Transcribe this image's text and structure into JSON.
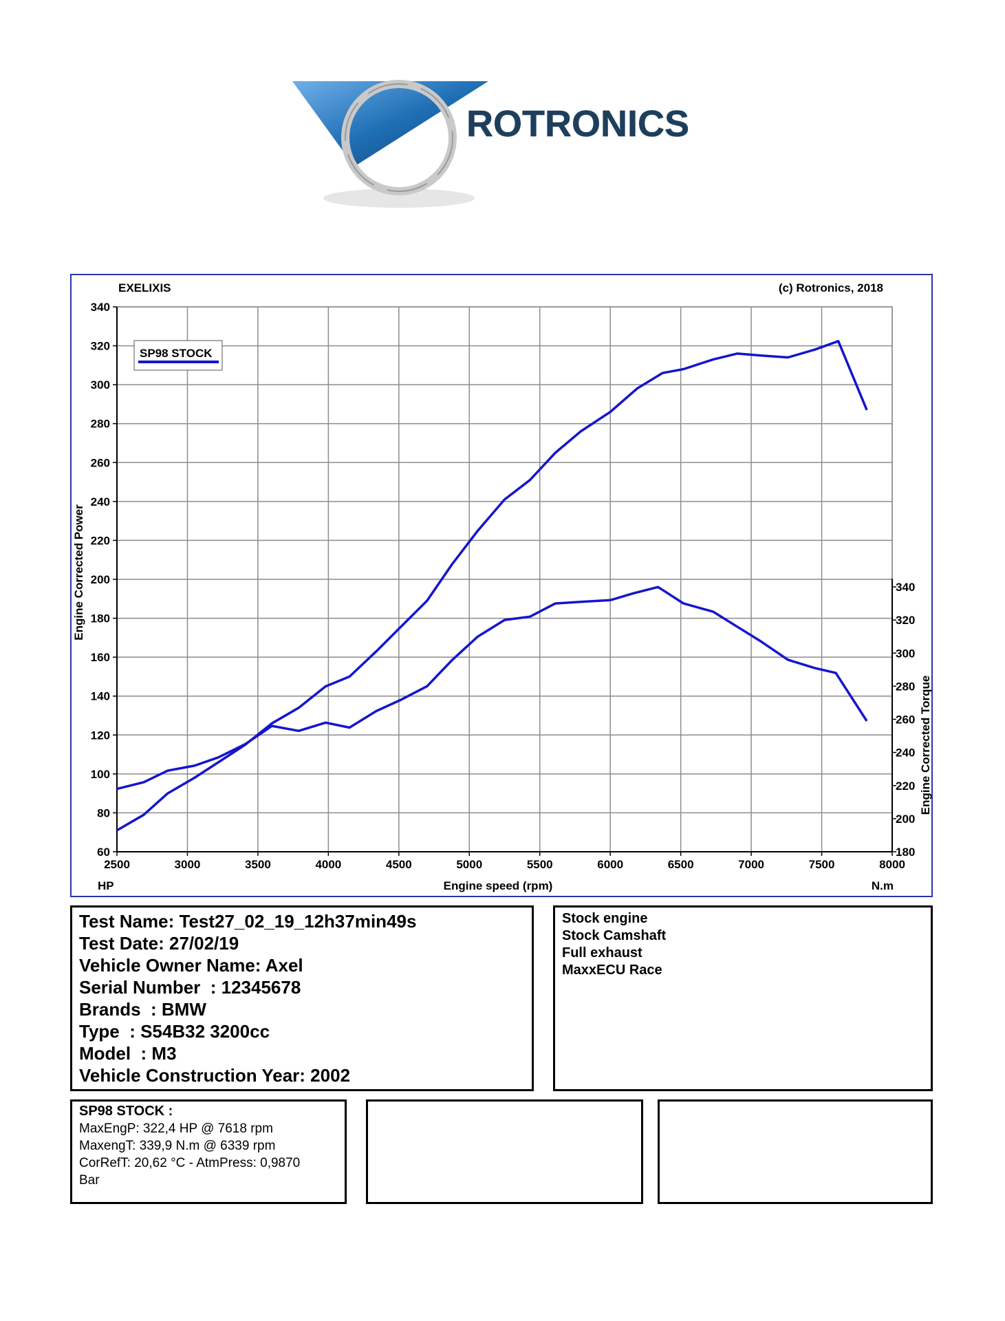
{
  "logo": {
    "text": "ROTRONICS"
  },
  "chart_data": {
    "type": "line",
    "header_left": "EXELIXIS",
    "header_right": "(c) Rotronics, 2018",
    "xlabel": "Engine speed (rpm)",
    "x_unit_left": "HP",
    "x_unit_right": "N.m",
    "ylabel_left": "Engine Corrected Power",
    "ylabel_right": "Engine Corrected Torque",
    "xlim": [
      2500,
      8000
    ],
    "ylim_left": [
      60,
      340
    ],
    "ylim_right": [
      180,
      340
    ],
    "x_ticks": [
      2500,
      3000,
      3500,
      4000,
      4500,
      5000,
      5500,
      6000,
      6500,
      7000,
      7500,
      8000
    ],
    "y_ticks_left": [
      60,
      80,
      100,
      120,
      140,
      160,
      180,
      200,
      220,
      240,
      260,
      280,
      300,
      320,
      340
    ],
    "y_ticks_right": [
      180,
      200,
      220,
      240,
      260,
      280,
      300,
      320,
      340
    ],
    "grid": true,
    "legend": {
      "label": "SP98 STOCK",
      "position": "top-left"
    },
    "series": [
      {
        "name": "SP98 STOCK",
        "axis": "left",
        "x": [
          2500,
          2690,
          2860,
          3050,
          3220,
          3410,
          3600,
          3790,
          3980,
          4150,
          4340,
          4520,
          4700,
          4880,
          5060,
          5250,
          5430,
          5610,
          5790,
          6000,
          6190,
          6370,
          6520,
          6730,
          6900,
          7070,
          7260,
          7450,
          7618,
          7820
        ],
        "values": [
          71,
          79,
          90,
          98,
          106,
          115,
          126,
          134,
          145,
          150,
          163,
          176,
          189,
          208,
          225,
          241,
          251,
          265,
          276,
          286,
          298,
          306,
          308,
          313,
          316,
          315,
          314,
          318,
          322.4,
          287
        ]
      },
      {
        "name": "SP98 STOCK",
        "axis": "right",
        "x": [
          2500,
          2690,
          2860,
          3050,
          3220,
          3410,
          3600,
          3790,
          3980,
          4150,
          4340,
          4520,
          4700,
          4880,
          5060,
          5250,
          5430,
          5610,
          5790,
          6000,
          6160,
          6339,
          6520,
          6730,
          6900,
          7070,
          7260,
          7450,
          7600,
          7820
        ],
        "values": [
          218,
          222,
          229,
          232,
          237,
          245,
          256,
          253,
          258,
          255,
          265,
          272,
          280,
          296,
          310,
          320,
          322,
          330,
          331,
          332,
          336,
          339.9,
          330,
          325,
          316,
          307,
          296,
          291,
          288,
          259
        ]
      }
    ]
  },
  "test_info": {
    "lines": [
      "Test Name: Test27_02_19_12h37min49s",
      "Test Date: 27/02/19",
      "Vehicle Owner Name: Axel",
      "Serial Number  : 12345678",
      "Brands  : BMW",
      "Type  : S54B32 3200cc",
      "Model  : M3",
      "Vehicle Construction Year: 2002"
    ]
  },
  "notes": {
    "lines": [
      "Stock engine",
      "Stock Camshaft",
      "Full exhaust",
      "MaxxECU Race"
    ]
  },
  "summary": {
    "title": "SP98 STOCK :",
    "lines": [
      "MaxEngP: 322,4 HP @ 7618 rpm",
      "MaxengT: 339,9 N.m @ 6339 rpm",
      "CorRefT: 20,62 °C - AtmPress: 0,9870",
      "Bar"
    ]
  },
  "colors": {
    "curve": "#1515cc",
    "frame": "#2a35a8",
    "grid": "#8c8c8c",
    "logo_blue": "#1f6fb5",
    "logo_text": "#1e3f5c"
  }
}
